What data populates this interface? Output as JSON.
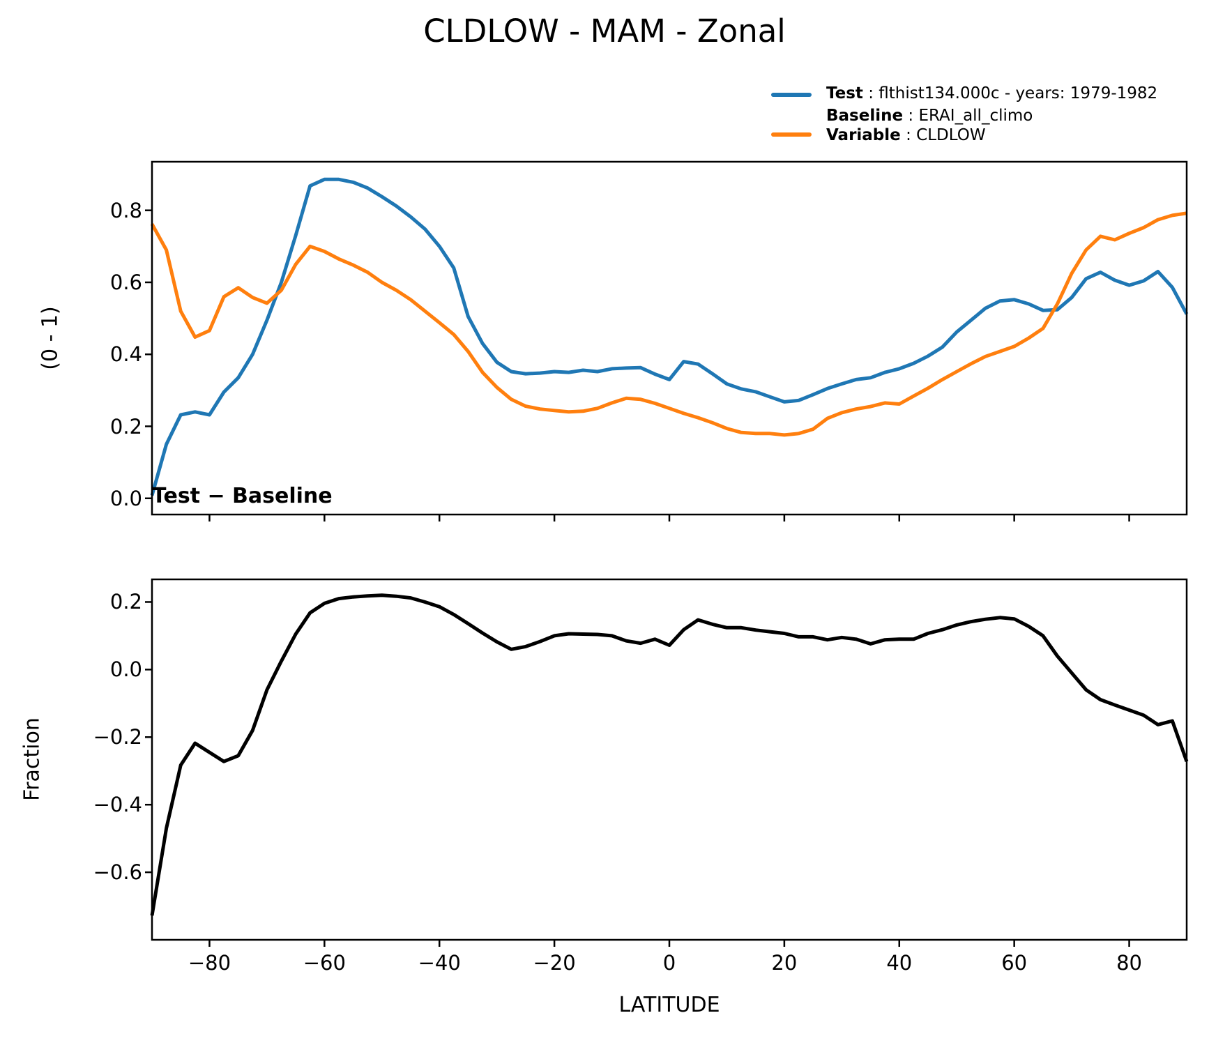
{
  "title": "CLDLOW - MAM - Zonal",
  "colors": {
    "test": "#1f77b4",
    "baseline": "#ff7f0e",
    "diff": "#000000"
  },
  "legend": {
    "test": {
      "label": "Test",
      "value": " : flthist134.000c - years: 1979-1982"
    },
    "baseline": {
      "label": "Baseline",
      "value": " : ERAI_all_climo"
    },
    "variable": {
      "label": "Variable",
      "value": " : CLDLOW"
    }
  },
  "chart_data": [
    {
      "type": "line",
      "title": "CLDLOW - MAM - Zonal",
      "xlabel": "LATITUDE",
      "ylabel": "(0 - 1)",
      "xlim": [
        -90,
        90
      ],
      "ylim": [
        -0.045,
        0.935
      ],
      "xticks": [
        -80,
        -60,
        -40,
        -20,
        0,
        20,
        40,
        60,
        80
      ],
      "yticks": [
        0.0,
        0.2,
        0.4,
        0.6,
        0.8
      ],
      "grid": false,
      "legend_position": "upper right outside",
      "x": [
        -90,
        -87.5,
        -85,
        -82.5,
        -80,
        -77.5,
        -75,
        -72.5,
        -70,
        -67.5,
        -65,
        -62.5,
        -60,
        -57.5,
        -55,
        -52.5,
        -50,
        -47.5,
        -45,
        -42.5,
        -40,
        -37.5,
        -35,
        -32.5,
        -30,
        -27.5,
        -25,
        -22.5,
        -20,
        -17.5,
        -15,
        -12.5,
        -10,
        -7.5,
        -5,
        -2.5,
        0,
        2.5,
        5,
        7.5,
        10,
        12.5,
        15,
        17.5,
        20,
        22.5,
        25,
        27.5,
        30,
        32.5,
        35,
        37.5,
        40,
        42.5,
        45,
        47.5,
        50,
        52.5,
        55,
        57.5,
        60,
        62.5,
        65,
        67.5,
        70,
        72.5,
        75,
        77.5,
        80,
        82.5,
        85,
        87.5,
        90
      ],
      "series": [
        {
          "name": "Test : flthist134.000c - years: 1979-1982",
          "color": "#1f77b4",
          "values": [
            0.008,
            0.15,
            0.232,
            0.24,
            0.232,
            0.295,
            0.335,
            0.4,
            0.495,
            0.6,
            0.73,
            0.868,
            0.886,
            0.886,
            0.878,
            0.862,
            0.838,
            0.812,
            0.782,
            0.748,
            0.7,
            0.64,
            0.505,
            0.43,
            0.378,
            0.352,
            0.346,
            0.348,
            0.352,
            0.35,
            0.356,
            0.352,
            0.36,
            0.362,
            0.363,
            0.345,
            0.33,
            0.38,
            0.373,
            0.346,
            0.318,
            0.304,
            0.296,
            0.282,
            0.268,
            0.272,
            0.288,
            0.305,
            0.318,
            0.33,
            0.335,
            0.35,
            0.36,
            0.375,
            0.395,
            0.42,
            0.462,
            0.495,
            0.528,
            0.548,
            0.552,
            0.54,
            0.522,
            0.524,
            0.558,
            0.61,
            0.628,
            0.606,
            0.592,
            0.604,
            0.63,
            0.586,
            0.512
          ]
        },
        {
          "name": "Baseline : ERAI_all_climo, Variable : CLDLOW",
          "color": "#ff7f0e",
          "values": [
            0.762,
            0.69,
            0.52,
            0.448,
            0.466,
            0.56,
            0.585,
            0.558,
            0.542,
            0.578,
            0.65,
            0.7,
            0.686,
            0.665,
            0.648,
            0.628,
            0.6,
            0.578,
            0.552,
            0.52,
            0.488,
            0.455,
            0.408,
            0.35,
            0.308,
            0.275,
            0.256,
            0.248,
            0.244,
            0.24,
            0.242,
            0.25,
            0.265,
            0.278,
            0.275,
            0.264,
            0.25,
            0.236,
            0.224,
            0.21,
            0.194,
            0.183,
            0.18,
            0.18,
            0.176,
            0.18,
            0.192,
            0.222,
            0.238,
            0.248,
            0.255,
            0.265,
            0.262,
            0.284,
            0.306,
            0.33,
            0.352,
            0.374,
            0.394,
            0.408,
            0.422,
            0.445,
            0.472,
            0.54,
            0.625,
            0.69,
            0.728,
            0.718,
            0.736,
            0.752,
            0.774,
            0.786,
            0.792
          ]
        }
      ]
    },
    {
      "type": "line",
      "title": "Test − Baseline",
      "xlabel": "LATITUDE",
      "ylabel": "Fraction",
      "xlim": [
        -90,
        90
      ],
      "ylim": [
        -0.8,
        0.267
      ],
      "xticks": [
        -80,
        -60,
        -40,
        -20,
        0,
        20,
        40,
        60,
        80
      ],
      "yticks": [
        0.2,
        0.0,
        -0.2,
        -0.4,
        -0.6
      ],
      "grid": false,
      "x": [
        -90,
        -87.5,
        -85,
        -82.5,
        -80,
        -77.5,
        -75,
        -72.5,
        -70,
        -67.5,
        -65,
        -62.5,
        -60,
        -57.5,
        -55,
        -52.5,
        -50,
        -47.5,
        -45,
        -42.5,
        -40,
        -37.5,
        -35,
        -32.5,
        -30,
        -27.5,
        -25,
        -22.5,
        -20,
        -17.5,
        -15,
        -12.5,
        -10,
        -7.5,
        -5,
        -2.5,
        0,
        2.5,
        5,
        7.5,
        10,
        12.5,
        15,
        17.5,
        20,
        22.5,
        25,
        27.5,
        30,
        32.5,
        35,
        37.5,
        40,
        42.5,
        45,
        47.5,
        50,
        52.5,
        55,
        57.5,
        60,
        62.5,
        65,
        67.5,
        70,
        72.5,
        75,
        77.5,
        80,
        82.5,
        85,
        87.5,
        90
      ],
      "series": [
        {
          "name": "Test − Baseline",
          "color": "#000000",
          "values": [
            -0.728,
            -0.47,
            -0.283,
            -0.218,
            -0.245,
            -0.272,
            -0.255,
            -0.18,
            -0.06,
            0.025,
            0.105,
            0.168,
            0.196,
            0.21,
            0.215,
            0.218,
            0.22,
            0.217,
            0.212,
            0.2,
            0.186,
            0.163,
            0.136,
            0.108,
            0.082,
            0.06,
            0.068,
            0.083,
            0.1,
            0.106,
            0.105,
            0.104,
            0.1,
            0.085,
            0.078,
            0.09,
            0.072,
            0.118,
            0.147,
            0.134,
            0.124,
            0.124,
            0.117,
            0.112,
            0.107,
            0.097,
            0.097,
            0.088,
            0.095,
            0.09,
            0.076,
            0.088,
            0.09,
            0.09,
            0.107,
            0.118,
            0.132,
            0.142,
            0.149,
            0.154,
            0.15,
            0.128,
            0.1,
            0.04,
            -0.01,
            -0.06,
            -0.089,
            -0.105,
            -0.12,
            -0.135,
            -0.163,
            -0.152,
            -0.272
          ]
        }
      ]
    }
  ]
}
